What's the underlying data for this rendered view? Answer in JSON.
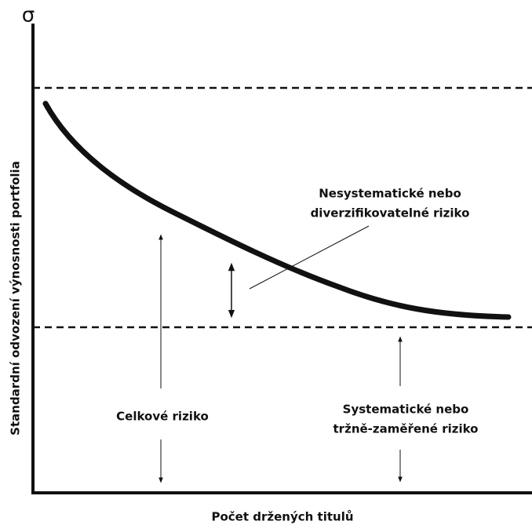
{
  "axes": {
    "y_symbol": "σ",
    "y_label": "Standardní odvození výnosnosti portfolia",
    "x_label": "Počet držených titulů"
  },
  "annotations": {
    "unsystematic": {
      "lines": [
        "Nesystematické nebo",
        "diverzifikovatelné riziko"
      ]
    },
    "total": {
      "text": "Celkové riziko"
    },
    "systematic": {
      "lines": [
        "Systematické nebo",
        "tržně-zaměřené riziko"
      ]
    }
  }
}
